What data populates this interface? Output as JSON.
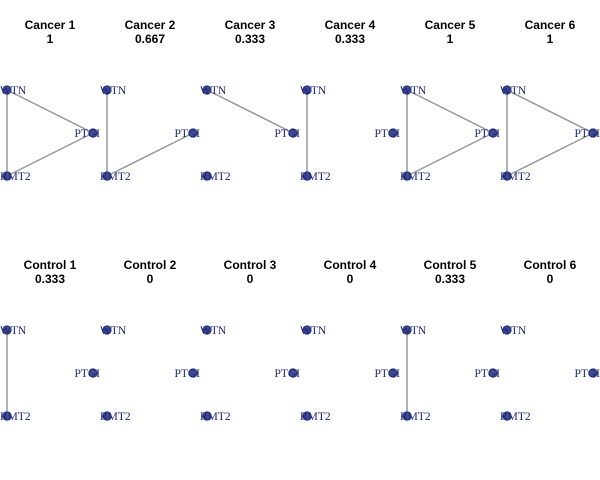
{
  "colors": {
    "node_fill": "#3f4a8c",
    "node_stroke": "#1a237e",
    "edge": "#999999",
    "label": "#1a237e"
  },
  "node_icon": "circle-node",
  "nodes": [
    "WTN",
    "PTGI",
    "RMT2"
  ],
  "node_labels": {
    "WTN": "WTN",
    "PTGI": "PTGI",
    "RMT2": "RMT2"
  },
  "panels": [
    {
      "name": "Cancer 1",
      "value": "1",
      "edges": [
        [
          "WTN",
          "PTGI"
        ],
        [
          "WTN",
          "RMT2"
        ],
        [
          "PTGI",
          "RMT2"
        ]
      ]
    },
    {
      "name": "Cancer 2",
      "value": "0.667",
      "edges": [
        [
          "WTN",
          "RMT2"
        ],
        [
          "PTGI",
          "RMT2"
        ]
      ]
    },
    {
      "name": "Cancer 3",
      "value": "0.333",
      "edges": [
        [
          "WTN",
          "PTGI"
        ]
      ]
    },
    {
      "name": "Cancer 4",
      "value": "0.333",
      "edges": [
        [
          "WTN",
          "RMT2"
        ]
      ]
    },
    {
      "name": "Cancer 5",
      "value": "1",
      "edges": [
        [
          "WTN",
          "PTGI"
        ],
        [
          "WTN",
          "RMT2"
        ],
        [
          "PTGI",
          "RMT2"
        ]
      ]
    },
    {
      "name": "Cancer 6",
      "value": "1",
      "edges": [
        [
          "WTN",
          "PTGI"
        ],
        [
          "WTN",
          "RMT2"
        ],
        [
          "PTGI",
          "RMT2"
        ]
      ]
    },
    {
      "name": "Control 1",
      "value": "0.333",
      "edges": [
        [
          "WTN",
          "RMT2"
        ]
      ]
    },
    {
      "name": "Control 2",
      "value": "0",
      "edges": []
    },
    {
      "name": "Control 3",
      "value": "0",
      "edges": []
    },
    {
      "name": "Control 4",
      "value": "0",
      "edges": []
    },
    {
      "name": "Control 5",
      "value": "0.333",
      "edges": [
        [
          "WTN",
          "RMT2"
        ]
      ]
    },
    {
      "name": "Control 6",
      "value": "0",
      "edges": []
    }
  ]
}
